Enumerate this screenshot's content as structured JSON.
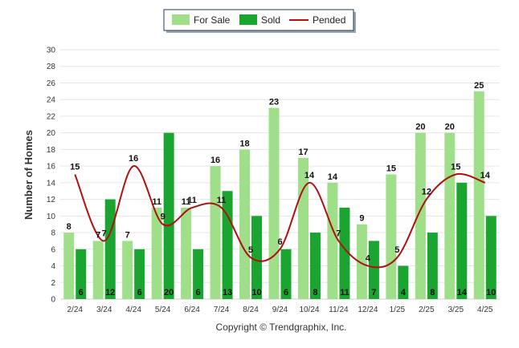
{
  "chart_data": {
    "type": "bar",
    "categories": [
      "2/24",
      "3/24",
      "4/24",
      "5/24",
      "6/24",
      "7/24",
      "8/24",
      "9/24",
      "10/24",
      "11/24",
      "12/24",
      "1/25",
      "2/25",
      "3/25",
      "4/25"
    ],
    "series": [
      {
        "name": "For Sale",
        "type": "bar",
        "color": "#9fdf8a",
        "values": [
          8,
          7,
          7,
          11,
          11,
          16,
          18,
          23,
          17,
          14,
          9,
          15,
          20,
          20,
          25
        ]
      },
      {
        "name": "Sold",
        "type": "bar",
        "color": "#1aa531",
        "values": [
          6,
          12,
          6,
          20,
          6,
          13,
          10,
          6,
          8,
          11,
          7,
          4,
          8,
          14,
          10
        ]
      },
      {
        "name": "Pended",
        "type": "line",
        "color": "#b01010",
        "values": [
          15,
          7,
          16,
          9,
          11,
          11,
          5,
          6,
          14,
          7,
          4,
          5,
          12,
          15,
          14
        ]
      }
    ],
    "ylabel": "Number of Homes",
    "ylim": [
      0,
      30
    ],
    "yticks": [
      0,
      2,
      4,
      6,
      8,
      10,
      12,
      14,
      16,
      18,
      20,
      22,
      24,
      26,
      28,
      30
    ],
    "grid": true,
    "legend_position": "top-center"
  },
  "footer": "Copyright © Trendgraphix, Inc."
}
